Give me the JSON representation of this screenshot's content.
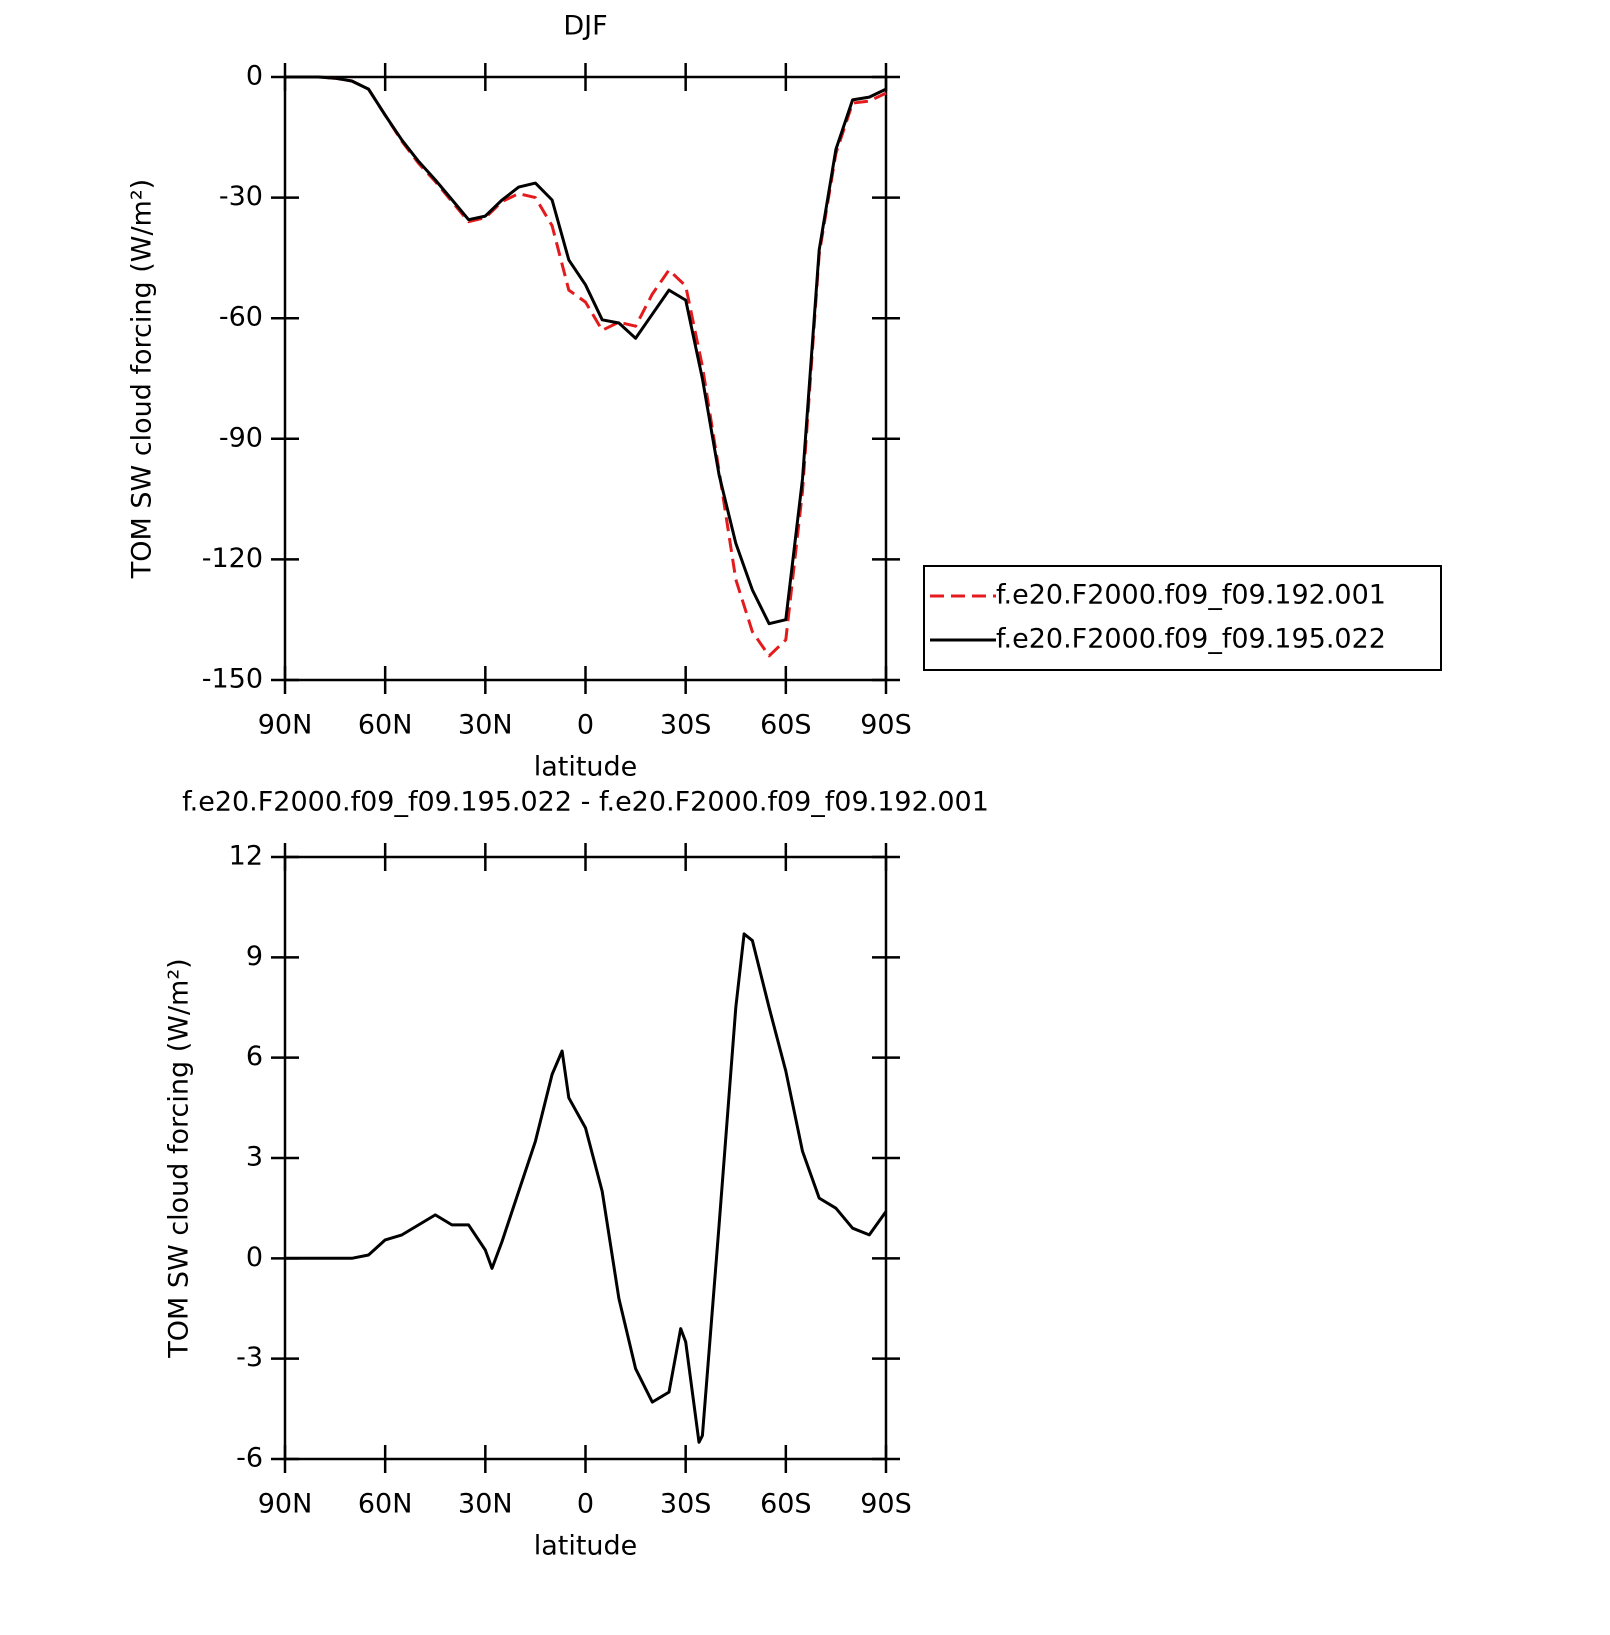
{
  "chart_data": [
    {
      "type": "line",
      "title": "DJF",
      "xlabel": "latitude",
      "ylabel": "TOM SW cloud forcing (W/m²)",
      "x": [
        90,
        85,
        80,
        75,
        70,
        65,
        60,
        55,
        50,
        45,
        40,
        35,
        30,
        25,
        20,
        15,
        10,
        5,
        0,
        -5,
        -10,
        -15,
        -20,
        -25,
        -30,
        -35,
        -40,
        -45,
        -50,
        -55,
        -60,
        -65,
        -70,
        -75,
        -80,
        -85,
        -90
      ],
      "series": [
        {
          "name": "f.e20.F2000.f09_f09.192.001",
          "color": "#e41a1c",
          "dash": "dashed",
          "values": [
            0,
            0,
            0,
            -0.3,
            -1,
            -3,
            -9.5,
            -16,
            -21.5,
            -26,
            -31,
            -36,
            -35,
            -31,
            -29,
            -30,
            -37,
            -53,
            -56,
            -63,
            -61,
            -62,
            -54,
            -48,
            -52,
            -72,
            -98,
            -125,
            -138,
            -144,
            -140,
            -103,
            -44,
            -19,
            -6.5,
            -6,
            -4
          ]
        },
        {
          "name": "f.e20.F2000.f09_f09.195.022",
          "color": "#000000",
          "dash": "solid",
          "values": [
            0,
            0,
            0,
            -0.3,
            -1,
            -3,
            -9.5,
            -15.7,
            -21,
            -25.6,
            -30.5,
            -35.5,
            -34.6,
            -30.6,
            -27.4,
            -26.4,
            -30.6,
            -45.5,
            -51.7,
            -60.4,
            -61.2,
            -65,
            -59,
            -53,
            -55.5,
            -75,
            -99,
            -116,
            -127.6,
            -136,
            -135,
            -100,
            -43,
            -18,
            -5.7,
            -5,
            -3
          ]
        }
      ],
      "xlim": [
        90,
        -90
      ],
      "xticks": [
        {
          "value": 90,
          "label": "90N"
        },
        {
          "value": 60,
          "label": "60N"
        },
        {
          "value": 30,
          "label": "30N"
        },
        0,
        {
          "value": -30,
          "label": "30S"
        },
        {
          "value": -60,
          "label": "60S"
        },
        {
          "value": -90,
          "label": "90S"
        }
      ],
      "ylim": [
        -150,
        0
      ],
      "yticks": [
        -150,
        -120,
        -90,
        -60,
        -30,
        0
      ],
      "legend": "right"
    },
    {
      "type": "line",
      "title": "f.e20.F2000.f09_f09.195.022 - f.e20.F2000.f09_f09.192.001",
      "xlabel": "latitude",
      "ylabel": "TOM SW cloud forcing (W/m²)",
      "x": [
        90,
        85,
        80,
        75,
        70,
        65,
        60,
        55,
        50,
        45,
        40,
        35,
        30,
        28,
        25,
        20,
        15,
        10,
        7,
        5,
        0,
        -5,
        -10,
        -15,
        -20,
        -25,
        -28.5,
        -30,
        -34,
        -35,
        -40,
        -45,
        -47.5,
        -50,
        -55,
        -60,
        -65,
        -70,
        -75,
        -80,
        -85,
        -90
      ],
      "series": [
        {
          "color": "#000000",
          "dash": "solid",
          "values": [
            0,
            0,
            0,
            0,
            0,
            0.1,
            0.55,
            0.7,
            1.0,
            1.3,
            1.0,
            1.0,
            0.25,
            -0.3,
            0.5,
            2.0,
            3.5,
            5.5,
            6.2,
            4.8,
            3.9,
            2.0,
            -1.2,
            -3.3,
            -4.3,
            -4.0,
            -2.1,
            -2.5,
            -5.5,
            -5.3,
            1.0,
            7.5,
            9.7,
            9.5,
            7.5,
            5.6,
            3.2,
            1.8,
            1.5,
            0.9,
            0.7,
            1.4
          ]
        }
      ],
      "xlim": [
        90,
        -90
      ],
      "xticks": [
        {
          "value": 90,
          "label": "90N"
        },
        {
          "value": 60,
          "label": "60N"
        },
        {
          "value": 30,
          "label": "30N"
        },
        0,
        {
          "value": -30,
          "label": "30S"
        },
        {
          "value": -60,
          "label": "60S"
        },
        {
          "value": -90,
          "label": "90S"
        }
      ],
      "ylim": [
        -6,
        12
      ],
      "yticks": [
        -6,
        -3,
        0,
        3,
        6,
        9,
        12
      ]
    }
  ]
}
